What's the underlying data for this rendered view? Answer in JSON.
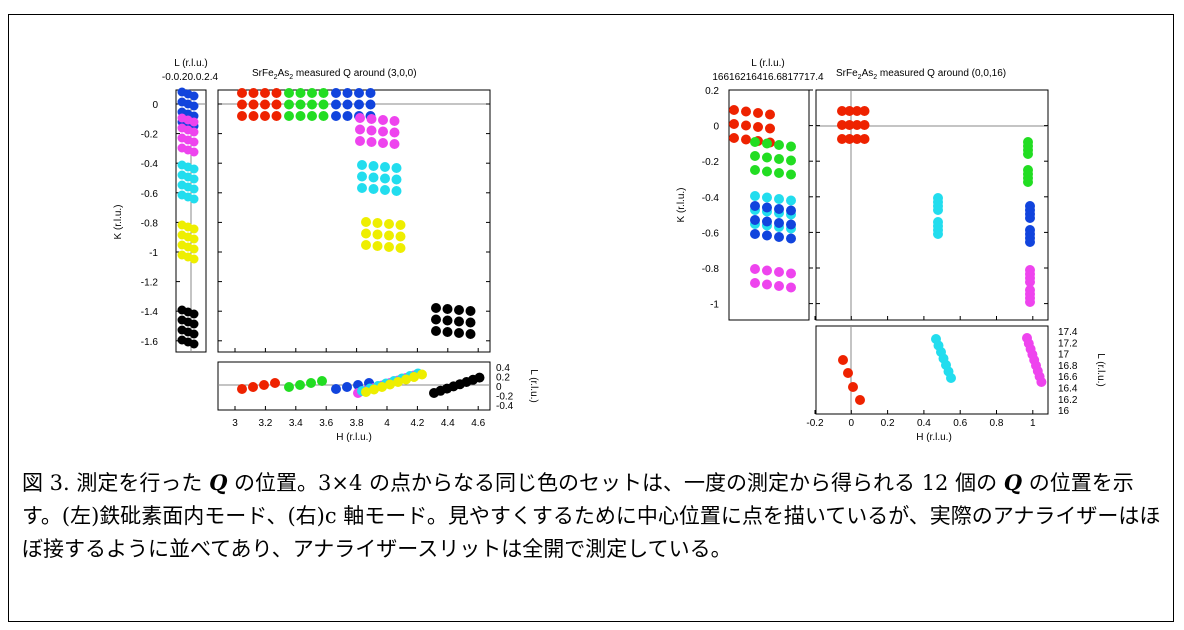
{
  "figure": {
    "left_panel": {
      "title_prefix": "SrFe",
      "title_sub1": "2",
      "title_mid": "As",
      "title_sub2": "2",
      "title_suffix": "  measured Q around (3,0,0)",
      "l_axis_label": "L (r.l.u.)",
      "k_axis_label": "K (r.l.u.)",
      "h_axis_label": "H (r.l.u.)",
      "l_right_label": "L (r.l.u.)",
      "top_l_ticks_text": "-0.0.20.0.2.4",
      "k_ticks": [
        "0",
        "-0.2",
        "-0.4",
        "-0.6",
        "-0.8",
        "-1",
        "-1.2",
        "-1.4",
        "-1.6"
      ],
      "h_ticks": [
        "3",
        "3.2",
        "3.4",
        "3.6",
        "3.8",
        "4",
        "4.2",
        "4.4",
        "4.6"
      ],
      "l_ticks": [
        "0.4",
        "0.2",
        "0",
        "-0.2",
        "-0.4"
      ]
    },
    "right_panel": {
      "title_prefix": "SrFe",
      "title_sub1": "2",
      "title_mid": "As",
      "title_sub2": "2",
      "title_suffix": "  measured Q around (0,0,16)",
      "l_axis_label": "L (r.l.u.)",
      "k_axis_label": "K (r.l.u.)",
      "h_axis_label": "H (r.l.u.)",
      "l_right_label": "L (r.l.u.)",
      "top_l_ticks_text": "16616216416.6817717.4",
      "k_ticks": [
        "0.2",
        "0",
        "-0.2",
        "-0.4",
        "-0.6",
        "-0.8",
        "-1"
      ],
      "h_ticks": [
        "-0.2",
        "0",
        "0.2",
        "0.4",
        "0.6",
        "0.8",
        "1"
      ],
      "l_ticks": [
        "17.4",
        "17.2",
        "17",
        "16.8",
        "16.6",
        "16.4",
        "16.2",
        "16"
      ]
    },
    "colors": {
      "red": "#ee2200",
      "green": "#22dd22",
      "blue": "#1144dd",
      "magenta": "#ee44ee",
      "cyan": "#22ddee",
      "yellow": "#eeee00",
      "black": "#000000"
    }
  },
  "caption": {
    "part1": "図 3. 測定を行った ",
    "q1": "Q",
    "part2": " の位置。3×4 の点からなる同じ色のセットは、一度の測定から得られる 12 個の ",
    "q2": "Q",
    "part3": " の位置を示す。(左)鉄砒素面内モード、(右)c 軸モード。見やすくするために中心位置に点を描いているが、実際のアナライザーはほぼ接するように並べてあり、アナライザースリットは全開で測定している。"
  }
}
